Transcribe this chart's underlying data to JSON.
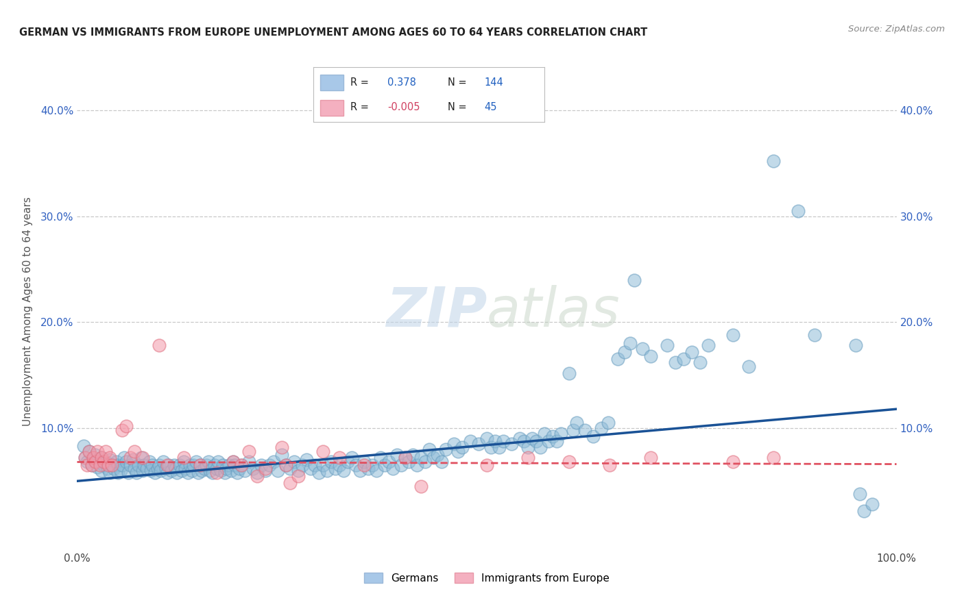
{
  "title": "GERMAN VS IMMIGRANTS FROM EUROPE UNEMPLOYMENT AMONG AGES 60 TO 64 YEARS CORRELATION CHART",
  "source": "Source: ZipAtlas.com",
  "ylabel": "Unemployment Among Ages 60 to 64 years",
  "xlim": [
    0,
    1.0
  ],
  "ylim": [
    -0.015,
    0.435
  ],
  "ytick_labels": [
    "10.0%",
    "20.0%",
    "30.0%",
    "40.0%"
  ],
  "ytick_positions": [
    0.1,
    0.2,
    0.3,
    0.4
  ],
  "watermark_zip": "ZIP",
  "watermark_atlas": "atlas",
  "german_color": "#90bcd8",
  "german_edge_color": "#6a9ec0",
  "immigrant_color": "#f49aaa",
  "immigrant_edge_color": "#e07080",
  "german_line_color": "#1a5296",
  "immigrant_line_color": "#e05060",
  "background_color": "#ffffff",
  "grid_color": "#bbbbbb",
  "title_color": "#222222",
  "legend_blue_color": "#a8c8e8",
  "legend_pink_color": "#f4b0c0",
  "legend_text_dark": "#222222",
  "legend_text_blue": "#2060c0",
  "legend_text_red": "#d04060",
  "ytick_color": "#3060c0",
  "xtick_color": "#444444",
  "ylabel_color": "#555555",
  "german_scatter": [
    [
      0.008,
      0.083
    ],
    [
      0.01,
      0.072
    ],
    [
      0.012,
      0.068
    ],
    [
      0.015,
      0.078
    ],
    [
      0.018,
      0.065
    ],
    [
      0.02,
      0.07
    ],
    [
      0.022,
      0.075
    ],
    [
      0.025,
      0.063
    ],
    [
      0.028,
      0.068
    ],
    [
      0.03,
      0.072
    ],
    [
      0.03,
      0.06
    ],
    [
      0.032,
      0.065
    ],
    [
      0.035,
      0.068
    ],
    [
      0.037,
      0.062
    ],
    [
      0.04,
      0.07
    ],
    [
      0.04,
      0.058
    ],
    [
      0.043,
      0.065
    ],
    [
      0.045,
      0.062
    ],
    [
      0.048,
      0.068
    ],
    [
      0.05,
      0.065
    ],
    [
      0.05,
      0.058
    ],
    [
      0.053,
      0.06
    ],
    [
      0.055,
      0.065
    ],
    [
      0.057,
      0.072
    ],
    [
      0.06,
      0.068
    ],
    [
      0.062,
      0.058
    ],
    [
      0.065,
      0.065
    ],
    [
      0.068,
      0.07
    ],
    [
      0.07,
      0.062
    ],
    [
      0.072,
      0.058
    ],
    [
      0.075,
      0.065
    ],
    [
      0.078,
      0.072
    ],
    [
      0.08,
      0.06
    ],
    [
      0.082,
      0.065
    ],
    [
      0.085,
      0.062
    ],
    [
      0.088,
      0.068
    ],
    [
      0.09,
      0.06
    ],
    [
      0.092,
      0.065
    ],
    [
      0.095,
      0.058
    ],
    [
      0.098,
      0.062
    ],
    [
      0.1,
      0.065
    ],
    [
      0.102,
      0.06
    ],
    [
      0.105,
      0.068
    ],
    [
      0.108,
      0.062
    ],
    [
      0.11,
      0.058
    ],
    [
      0.112,
      0.065
    ],
    [
      0.115,
      0.06
    ],
    [
      0.118,
      0.065
    ],
    [
      0.12,
      0.062
    ],
    [
      0.122,
      0.058
    ],
    [
      0.125,
      0.065
    ],
    [
      0.128,
      0.06
    ],
    [
      0.13,
      0.068
    ],
    [
      0.132,
      0.062
    ],
    [
      0.135,
      0.058
    ],
    [
      0.138,
      0.065
    ],
    [
      0.14,
      0.06
    ],
    [
      0.142,
      0.065
    ],
    [
      0.145,
      0.068
    ],
    [
      0.148,
      0.058
    ],
    [
      0.15,
      0.065
    ],
    [
      0.152,
      0.06
    ],
    [
      0.155,
      0.062
    ],
    [
      0.158,
      0.065
    ],
    [
      0.16,
      0.068
    ],
    [
      0.162,
      0.06
    ],
    [
      0.165,
      0.058
    ],
    [
      0.168,
      0.065
    ],
    [
      0.17,
      0.062
    ],
    [
      0.172,
      0.068
    ],
    [
      0.175,
      0.06
    ],
    [
      0.178,
      0.065
    ],
    [
      0.18,
      0.058
    ],
    [
      0.182,
      0.062
    ],
    [
      0.185,
      0.065
    ],
    [
      0.188,
      0.06
    ],
    [
      0.19,
      0.068
    ],
    [
      0.192,
      0.065
    ],
    [
      0.195,
      0.058
    ],
    [
      0.198,
      0.062
    ],
    [
      0.2,
      0.065
    ],
    [
      0.205,
      0.06
    ],
    [
      0.21,
      0.068
    ],
    [
      0.215,
      0.062
    ],
    [
      0.22,
      0.058
    ],
    [
      0.225,
      0.065
    ],
    [
      0.23,
      0.06
    ],
    [
      0.235,
      0.065
    ],
    [
      0.24,
      0.068
    ],
    [
      0.245,
      0.06
    ],
    [
      0.25,
      0.075
    ],
    [
      0.255,
      0.065
    ],
    [
      0.26,
      0.062
    ],
    [
      0.265,
      0.068
    ],
    [
      0.27,
      0.06
    ],
    [
      0.275,
      0.065
    ],
    [
      0.28,
      0.07
    ],
    [
      0.285,
      0.062
    ],
    [
      0.29,
      0.065
    ],
    [
      0.295,
      0.058
    ],
    [
      0.3,
      0.065
    ],
    [
      0.305,
      0.06
    ],
    [
      0.31,
      0.068
    ],
    [
      0.315,
      0.062
    ],
    [
      0.32,
      0.065
    ],
    [
      0.325,
      0.06
    ],
    [
      0.33,
      0.068
    ],
    [
      0.335,
      0.072
    ],
    [
      0.34,
      0.065
    ],
    [
      0.345,
      0.06
    ],
    [
      0.35,
      0.068
    ],
    [
      0.355,
      0.062
    ],
    [
      0.36,
      0.065
    ],
    [
      0.365,
      0.06
    ],
    [
      0.37,
      0.072
    ],
    [
      0.375,
      0.065
    ],
    [
      0.38,
      0.068
    ],
    [
      0.385,
      0.062
    ],
    [
      0.39,
      0.075
    ],
    [
      0.395,
      0.065
    ],
    [
      0.4,
      0.072
    ],
    [
      0.405,
      0.068
    ],
    [
      0.41,
      0.075
    ],
    [
      0.415,
      0.065
    ],
    [
      0.42,
      0.072
    ],
    [
      0.425,
      0.068
    ],
    [
      0.43,
      0.08
    ],
    [
      0.435,
      0.072
    ],
    [
      0.44,
      0.075
    ],
    [
      0.445,
      0.068
    ],
    [
      0.45,
      0.08
    ],
    [
      0.46,
      0.085
    ],
    [
      0.465,
      0.078
    ],
    [
      0.47,
      0.082
    ],
    [
      0.48,
      0.088
    ],
    [
      0.49,
      0.085
    ],
    [
      0.5,
      0.09
    ],
    [
      0.505,
      0.082
    ],
    [
      0.51,
      0.088
    ],
    [
      0.515,
      0.082
    ],
    [
      0.52,
      0.088
    ],
    [
      0.53,
      0.085
    ],
    [
      0.54,
      0.09
    ],
    [
      0.545,
      0.088
    ],
    [
      0.55,
      0.082
    ],
    [
      0.555,
      0.09
    ],
    [
      0.56,
      0.088
    ],
    [
      0.565,
      0.082
    ],
    [
      0.57,
      0.095
    ],
    [
      0.575,
      0.088
    ],
    [
      0.58,
      0.092
    ],
    [
      0.585,
      0.088
    ],
    [
      0.59,
      0.095
    ],
    [
      0.6,
      0.152
    ],
    [
      0.605,
      0.098
    ],
    [
      0.61,
      0.105
    ],
    [
      0.62,
      0.098
    ],
    [
      0.63,
      0.092
    ],
    [
      0.64,
      0.1
    ],
    [
      0.648,
      0.105
    ],
    [
      0.66,
      0.165
    ],
    [
      0.668,
      0.172
    ],
    [
      0.675,
      0.18
    ],
    [
      0.68,
      0.24
    ],
    [
      0.69,
      0.175
    ],
    [
      0.7,
      0.168
    ],
    [
      0.72,
      0.178
    ],
    [
      0.73,
      0.162
    ],
    [
      0.74,
      0.165
    ],
    [
      0.75,
      0.172
    ],
    [
      0.76,
      0.162
    ],
    [
      0.77,
      0.178
    ],
    [
      0.8,
      0.188
    ],
    [
      0.82,
      0.158
    ],
    [
      0.85,
      0.352
    ],
    [
      0.88,
      0.305
    ],
    [
      0.9,
      0.188
    ],
    [
      0.95,
      0.178
    ],
    [
      0.955,
      0.038
    ],
    [
      0.96,
      0.022
    ],
    [
      0.97,
      0.028
    ]
  ],
  "immigrant_scatter": [
    [
      0.01,
      0.072
    ],
    [
      0.012,
      0.065
    ],
    [
      0.015,
      0.078
    ],
    [
      0.018,
      0.065
    ],
    [
      0.02,
      0.072
    ],
    [
      0.022,
      0.068
    ],
    [
      0.025,
      0.078
    ],
    [
      0.028,
      0.065
    ],
    [
      0.03,
      0.072
    ],
    [
      0.032,
      0.068
    ],
    [
      0.035,
      0.078
    ],
    [
      0.038,
      0.065
    ],
    [
      0.04,
      0.072
    ],
    [
      0.042,
      0.065
    ],
    [
      0.055,
      0.098
    ],
    [
      0.06,
      0.102
    ],
    [
      0.065,
      0.072
    ],
    [
      0.07,
      0.078
    ],
    [
      0.08,
      0.072
    ],
    [
      0.1,
      0.178
    ],
    [
      0.11,
      0.065
    ],
    [
      0.13,
      0.072
    ],
    [
      0.15,
      0.065
    ],
    [
      0.17,
      0.058
    ],
    [
      0.19,
      0.068
    ],
    [
      0.2,
      0.065
    ],
    [
      0.21,
      0.078
    ],
    [
      0.22,
      0.055
    ],
    [
      0.23,
      0.062
    ],
    [
      0.25,
      0.082
    ],
    [
      0.255,
      0.065
    ],
    [
      0.26,
      0.048
    ],
    [
      0.27,
      0.055
    ],
    [
      0.3,
      0.078
    ],
    [
      0.32,
      0.072
    ],
    [
      0.35,
      0.065
    ],
    [
      0.4,
      0.072
    ],
    [
      0.42,
      0.045
    ],
    [
      0.5,
      0.065
    ],
    [
      0.55,
      0.072
    ],
    [
      0.6,
      0.068
    ],
    [
      0.65,
      0.065
    ],
    [
      0.7,
      0.072
    ],
    [
      0.8,
      0.068
    ],
    [
      0.85,
      0.072
    ]
  ],
  "german_line_x": [
    0.0,
    1.0
  ],
  "german_line_y": [
    0.05,
    0.118
  ],
  "immigrant_line_x": [
    0.0,
    1.0
  ],
  "immigrant_line_y": [
    0.068,
    0.066
  ]
}
